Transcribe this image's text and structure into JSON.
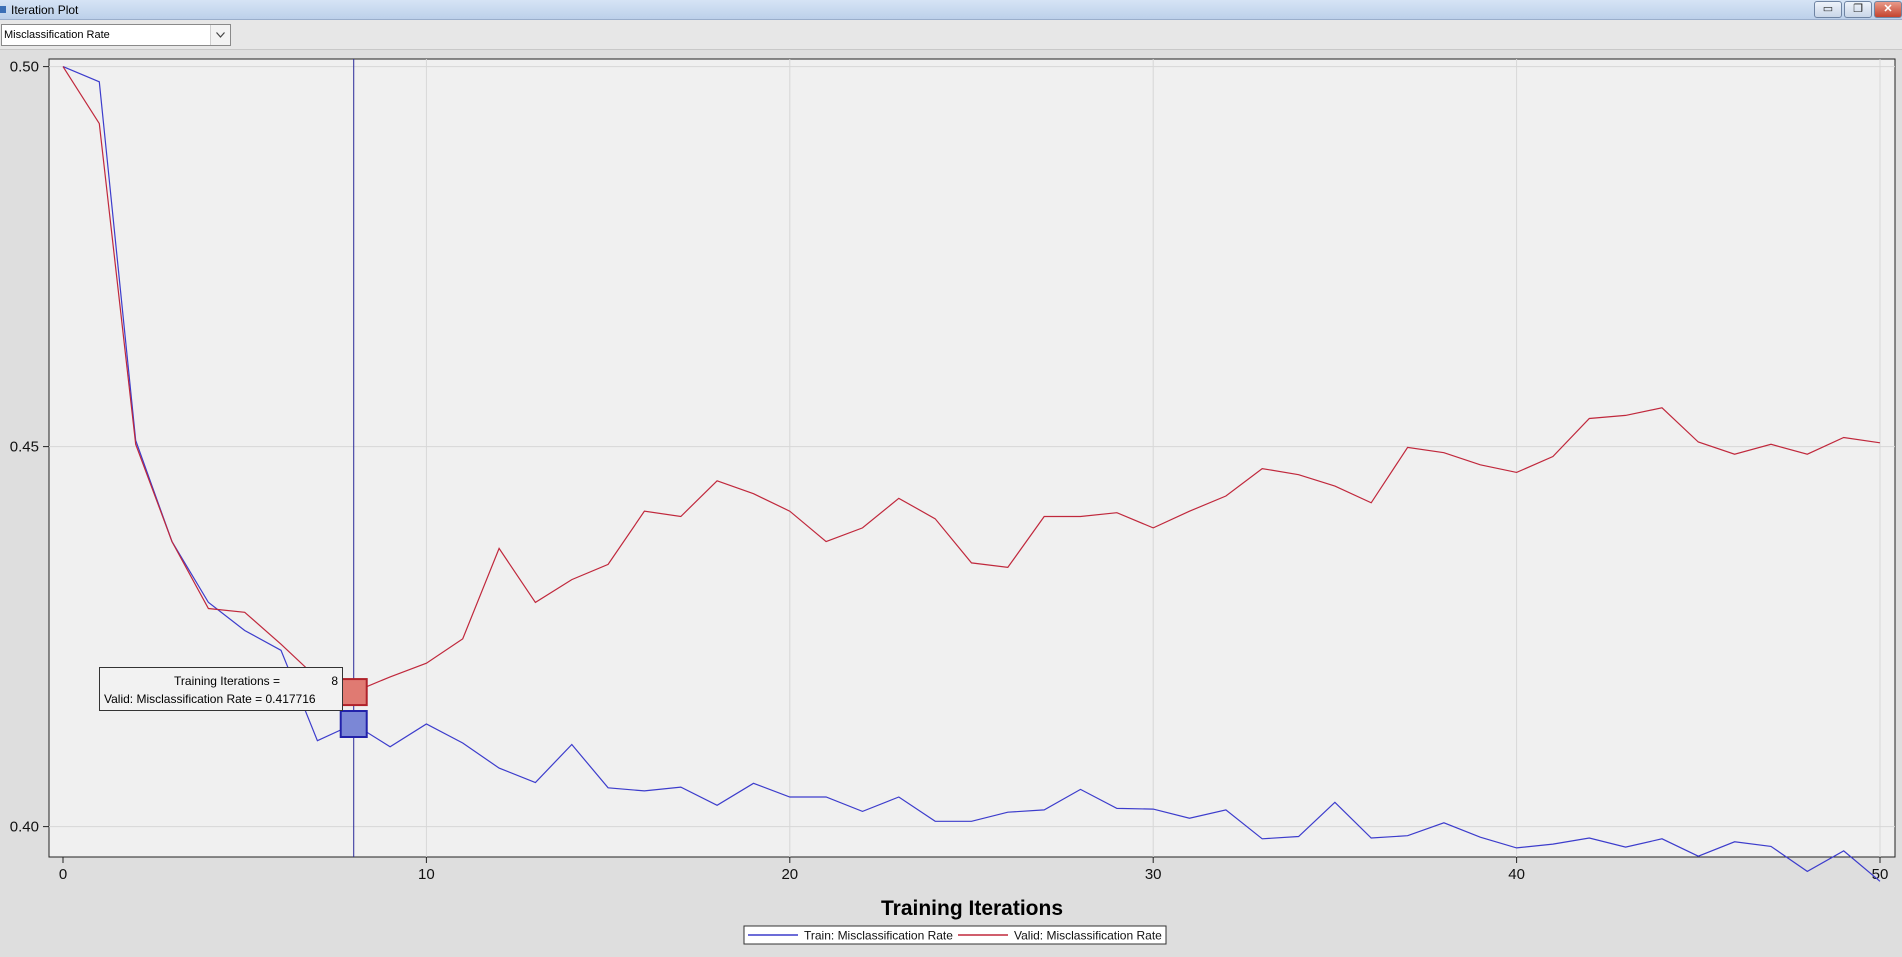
{
  "window": {
    "title": "Iteration Plot",
    "min_glyph": "▭",
    "max_glyph": "❐",
    "close_glyph": "✕"
  },
  "toolbar": {
    "selected_statistic": "Misclassification Rate"
  },
  "colors": {
    "train": "#3c3ccc",
    "valid": "#c0283c",
    "plot_bg": "#f0f0f0",
    "grid": "#d7d7d7",
    "reference_line": "#2a2a9a"
  },
  "chart_data": {
    "type": "line",
    "xlabel": "Training Iterations",
    "ylabel": "",
    "xlim": [
      0,
      50
    ],
    "ylim": [
      0.396,
      0.501
    ],
    "xticks": [
      "0",
      "10",
      "20",
      "30",
      "40",
      "50"
    ],
    "yticks": [
      "0.40",
      "0.45",
      "0.50"
    ],
    "grid": true,
    "legend_position": "bottom-center",
    "reference_line_x": 8,
    "x": [
      0,
      1,
      2,
      3,
      4,
      5,
      6,
      7,
      8,
      9,
      10,
      11,
      12,
      13,
      14,
      15,
      16,
      17,
      18,
      19,
      20,
      21,
      22,
      23,
      24,
      25,
      26,
      27,
      28,
      29,
      30,
      31,
      32,
      33,
      34,
      35,
      36,
      37,
      38,
      39,
      40,
      41,
      42,
      43,
      44,
      45,
      46,
      47,
      48,
      49,
      50
    ],
    "series": [
      {
        "name": "Train: Misclassification Rate",
        "color": "#3c3ccc",
        "values": [
          0.5,
          0.498,
          0.4508,
          0.4375,
          0.4295,
          0.4258,
          0.4232,
          0.4113,
          0.4135,
          0.4105,
          0.4135,
          0.411,
          0.4077,
          0.4058,
          0.4108,
          0.4051,
          0.4047,
          0.4052,
          0.4028,
          0.4057,
          0.4039,
          0.4039,
          0.402,
          0.4039,
          0.4007,
          0.4007,
          0.4019,
          0.4022,
          0.4049,
          0.4024,
          0.4023,
          0.4011,
          0.4022,
          0.3984,
          0.3987,
          0.4032,
          0.3985,
          0.3988,
          0.4005,
          0.3986,
          0.3972,
          0.3977,
          0.3985,
          0.3973,
          0.3984,
          0.3961,
          0.398,
          0.3974,
          0.3941,
          0.3968,
          0.3928
        ]
      },
      {
        "name": "Valid: Misclassification Rate",
        "color": "#c0283c",
        "values": [
          0.5,
          0.4925,
          0.4503,
          0.4375,
          0.4287,
          0.4282,
          0.424,
          0.4195,
          0.4177,
          0.4197,
          0.4215,
          0.4247,
          0.4366,
          0.4295,
          0.4325,
          0.4345,
          0.4415,
          0.4408,
          0.4455,
          0.4438,
          0.4415,
          0.4375,
          0.4393,
          0.4432,
          0.4405,
          0.4347,
          0.4341,
          0.4408,
          0.4408,
          0.4413,
          0.4393,
          0.4415,
          0.4435,
          0.4471,
          0.4463,
          0.4448,
          0.4426,
          0.4499,
          0.4492,
          0.4476,
          0.4466,
          0.4487,
          0.4537,
          0.4541,
          0.4551,
          0.4506,
          0.449,
          0.4503,
          0.449,
          0.4512,
          0.4505
        ]
      }
    ]
  },
  "tooltip": {
    "row1_label": "Training Iterations =",
    "row1_value": "8",
    "row2_label": "Valid: Misclassification Rate = 0.417716"
  }
}
